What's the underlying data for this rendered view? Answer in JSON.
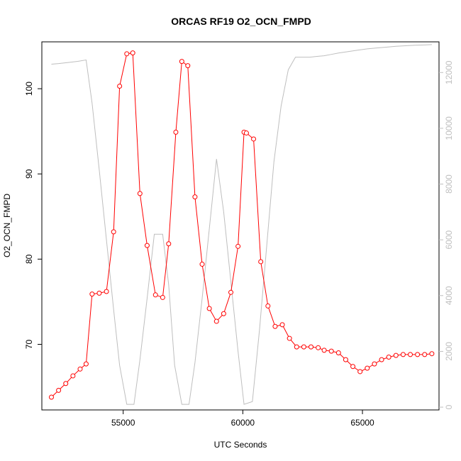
{
  "chart_data": {
    "type": "line",
    "title": "ORCAS RF19 O2_OCN_FMPD",
    "xlabel": "UTC Seconds",
    "ylabel": "O2_OCN_FMPD",
    "y2label": "",
    "xlim": [
      51600,
      68200
    ],
    "ylim": [
      62.3,
      105.5
    ],
    "y2lim": [
      -100,
      13100
    ],
    "x_ticks": [
      55000,
      60000,
      65000
    ],
    "y_ticks": [
      70,
      80,
      90,
      100
    ],
    "y2_ticks": [
      0,
      2000,
      4000,
      6000,
      8000,
      10000,
      12000
    ],
    "colors": {
      "primary": "#ff0000",
      "secondary": "#bebebe"
    },
    "series": [
      {
        "role": "primary",
        "style": "line+open-circles",
        "color": "#ff0000",
        "x": [
          52000,
          52300,
          52600,
          52900,
          53200,
          53450,
          53700,
          54000,
          54300,
          54600,
          54850,
          55150,
          55400,
          55700,
          56000,
          56350,
          56650,
          56900,
          57200,
          57450,
          57700,
          58000,
          58300,
          58600,
          58900,
          59200,
          59500,
          59800,
          60050,
          60150,
          60450,
          60750,
          61050,
          61350,
          61650,
          61950,
          62250,
          62550,
          62850,
          63150,
          63400,
          63700,
          64000,
          64300,
          64600,
          64900,
          65200,
          65500,
          65800,
          66100,
          66400,
          66700,
          67000,
          67300,
          67600,
          67900
        ],
        "y": [
          63.8,
          64.6,
          65.4,
          66.3,
          67.1,
          67.7,
          75.9,
          76.0,
          76.2,
          83.2,
          100.3,
          104.1,
          104.2,
          87.7,
          81.6,
          75.8,
          75.5,
          81.8,
          94.9,
          103.2,
          102.7,
          87.3,
          79.4,
          74.2,
          72.7,
          73.6,
          76.1,
          81.5,
          94.9,
          94.8,
          94.1,
          79.7,
          74.5,
          72.1,
          72.3,
          70.7,
          69.7,
          69.7,
          69.7,
          69.6,
          69.3,
          69.2,
          69.0,
          68.2,
          67.4,
          66.8,
          67.2,
          67.7,
          68.2,
          68.5,
          68.7,
          68.8,
          68.8,
          68.8,
          68.8,
          68.9
        ]
      },
      {
        "role": "secondary",
        "style": "line",
        "color": "#bebebe",
        "x": [
          52000,
          52300,
          52700,
          53100,
          53450,
          53700,
          54000,
          54300,
          54600,
          54850,
          55150,
          55450,
          55700,
          56000,
          56300,
          56650,
          56900,
          57150,
          57450,
          57750,
          58000,
          58300,
          58600,
          58900,
          59200,
          59500,
          59800,
          60050,
          60400,
          60700,
          61000,
          61300,
          61600,
          61900,
          62200,
          62500,
          62800,
          63100,
          63400,
          63700,
          64000,
          64400,
          64800,
          65200,
          65600,
          66000,
          66400,
          66800,
          67200,
          67600,
          67900
        ],
        "y": [
          12300,
          12320,
          12360,
          12400,
          12450,
          10900,
          8500,
          6000,
          3500,
          1500,
          100,
          100,
          1700,
          3900,
          6200,
          6200,
          4400,
          1500,
          100,
          100,
          1600,
          3900,
          6400,
          8900,
          7000,
          4500,
          2000,
          100,
          200,
          2800,
          5800,
          8800,
          10800,
          12100,
          12550,
          12550,
          12550,
          12580,
          12600,
          12650,
          12700,
          12750,
          12800,
          12850,
          12880,
          12910,
          12940,
          12960,
          12980,
          12990,
          13000
        ]
      }
    ]
  }
}
